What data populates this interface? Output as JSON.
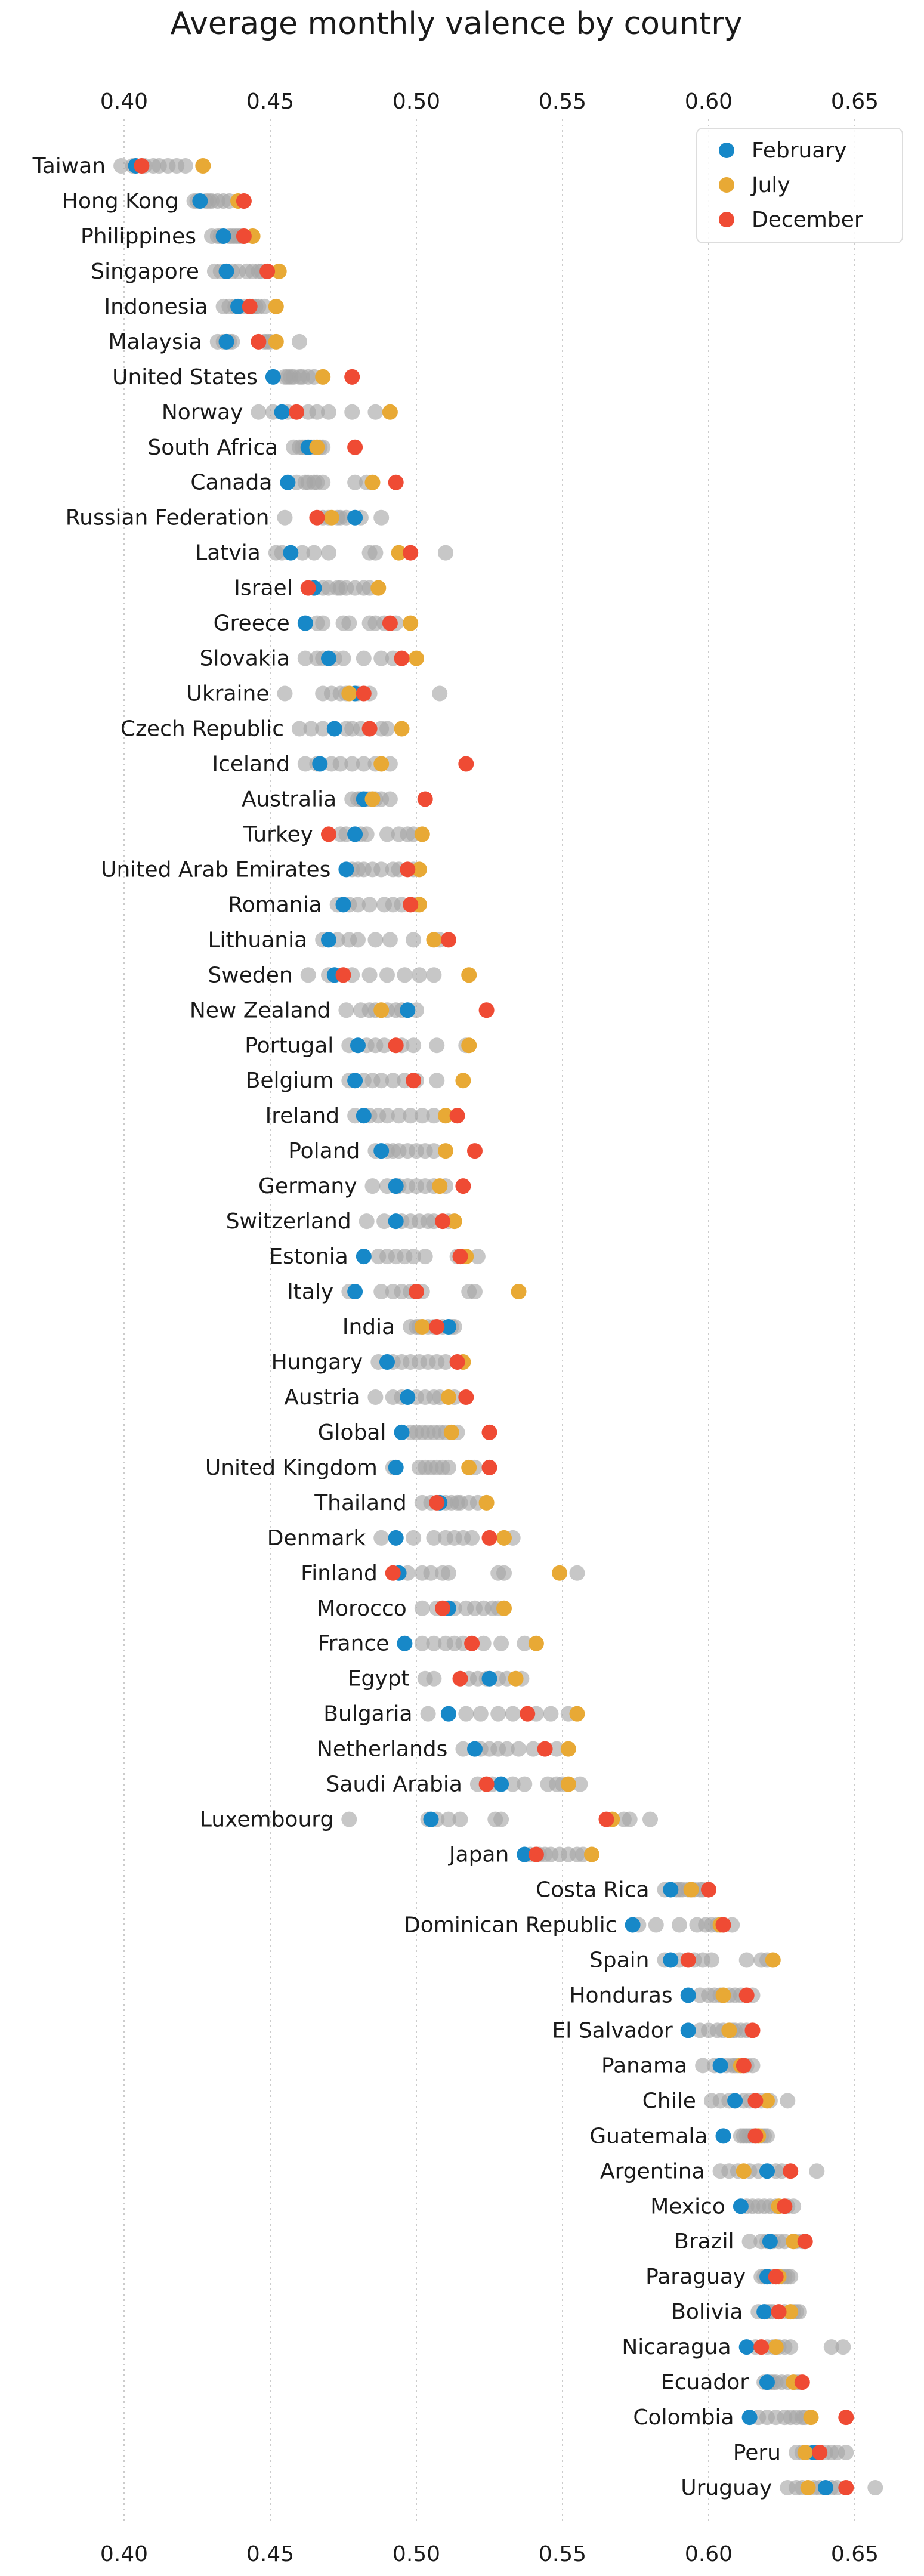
{
  "chart_data": {
    "type": "scatter",
    "title": "Average monthly valence by country",
    "xlabel": "",
    "ylabel": "",
    "xlim": [
      0.38,
      0.66
    ],
    "xticks": [
      "0.40",
      "0.45",
      "0.50",
      "0.55",
      "0.60",
      "0.65"
    ],
    "grid": "vertical dotted",
    "legend": {
      "position": "top-right",
      "entries": [
        "February",
        "July",
        "December"
      ]
    },
    "colors": {
      "February": "#1788c8",
      "July": "#e8a935",
      "December": "#ef4b34",
      "other_months": "#a5a5a5"
    },
    "series_order": [
      "February",
      "July",
      "December"
    ],
    "countries": [
      {
        "name": "Taiwan",
        "feb": 0.404,
        "jul": 0.427,
        "dec": 0.406,
        "others": [
          0.399,
          0.407,
          0.412,
          0.415,
          0.418,
          0.421,
          0.41,
          0.403
        ]
      },
      {
        "name": "Hong Kong",
        "feb": 0.426,
        "jul": 0.439,
        "dec": 0.441,
        "others": [
          0.424,
          0.428,
          0.432,
          0.436,
          0.43,
          0.425,
          0.434,
          0.429
        ]
      },
      {
        "name": "Philippines",
        "feb": 0.434,
        "jul": 0.444,
        "dec": 0.441,
        "others": [
          0.43,
          0.433,
          0.437,
          0.439,
          0.436,
          0.432,
          0.438,
          0.44
        ]
      },
      {
        "name": "Singapore",
        "feb": 0.435,
        "jul": 0.453,
        "dec": 0.449,
        "others": [
          0.431,
          0.433,
          0.437,
          0.446,
          0.442,
          0.439,
          0.447,
          0.444
        ]
      },
      {
        "name": "Indonesia",
        "feb": 0.439,
        "jul": 0.452,
        "dec": 0.443,
        "others": [
          0.434,
          0.436,
          0.441,
          0.445,
          0.448,
          0.438,
          0.446,
          0.444
        ]
      },
      {
        "name": "Malaysia",
        "feb": 0.435,
        "jul": 0.452,
        "dec": 0.446,
        "others": [
          0.432,
          0.434,
          0.437,
          0.448,
          0.46,
          0.45,
          0.436,
          0.449
        ]
      },
      {
        "name": "United States",
        "feb": 0.451,
        "jul": 0.468,
        "dec": 0.478,
        "others": [
          0.455,
          0.458,
          0.461,
          0.463,
          0.465,
          0.457,
          0.46,
          0.456
        ]
      },
      {
        "name": "Norway",
        "feb": 0.454,
        "jul": 0.491,
        "dec": 0.459,
        "others": [
          0.446,
          0.451,
          0.463,
          0.466,
          0.47,
          0.478,
          0.486,
          0.456
        ]
      },
      {
        "name": "South Africa",
        "feb": 0.463,
        "jul": 0.466,
        "dec": 0.479,
        "others": [
          0.458,
          0.46,
          0.462,
          0.465,
          0.468,
          0.461,
          0.464,
          0.467
        ]
      },
      {
        "name": "Canada",
        "feb": 0.456,
        "jul": 0.485,
        "dec": 0.493,
        "others": [
          0.459,
          0.462,
          0.465,
          0.468,
          0.479,
          0.483,
          0.463,
          0.466
        ]
      },
      {
        "name": "Russian Federation",
        "feb": 0.479,
        "jul": 0.471,
        "dec": 0.466,
        "others": [
          0.455,
          0.468,
          0.473,
          0.476,
          0.481,
          0.474,
          0.488,
          0.47
        ]
      },
      {
        "name": "Latvia",
        "feb": 0.457,
        "jul": 0.494,
        "dec": 0.498,
        "others": [
          0.452,
          0.454,
          0.461,
          0.465,
          0.47,
          0.484,
          0.486,
          0.51
        ]
      },
      {
        "name": "Israel",
        "feb": 0.465,
        "jul": 0.487,
        "dec": 0.463,
        "others": [
          0.468,
          0.47,
          0.473,
          0.476,
          0.479,
          0.482,
          0.484,
          0.474
        ]
      },
      {
        "name": "Greece",
        "feb": 0.462,
        "jul": 0.498,
        "dec": 0.491,
        "others": [
          0.466,
          0.468,
          0.475,
          0.477,
          0.484,
          0.486,
          0.493,
          0.489
        ]
      },
      {
        "name": "Slovakia",
        "feb": 0.47,
        "jul": 0.5,
        "dec": 0.495,
        "others": [
          0.462,
          0.466,
          0.468,
          0.475,
          0.482,
          0.488,
          0.492,
          0.472
        ]
      },
      {
        "name": "Ukraine",
        "feb": 0.479,
        "jul": 0.477,
        "dec": 0.482,
        "others": [
          0.455,
          0.468,
          0.471,
          0.474,
          0.476,
          0.48,
          0.484,
          0.508
        ]
      },
      {
        "name": "Czech Republic",
        "feb": 0.472,
        "jul": 0.495,
        "dec": 0.484,
        "others": [
          0.46,
          0.464,
          0.468,
          0.476,
          0.478,
          0.481,
          0.488,
          0.49
        ]
      },
      {
        "name": "Iceland",
        "feb": 0.467,
        "jul": 0.488,
        "dec": 0.517,
        "others": [
          0.462,
          0.466,
          0.471,
          0.474,
          0.478,
          0.482,
          0.486,
          0.491
        ]
      },
      {
        "name": "Australia",
        "feb": 0.482,
        "jul": 0.485,
        "dec": 0.503,
        "others": [
          0.478,
          0.48,
          0.484,
          0.486,
          0.488,
          0.483,
          0.481,
          0.491
        ]
      },
      {
        "name": "Turkey",
        "feb": 0.479,
        "jul": 0.502,
        "dec": 0.47,
        "others": [
          0.474,
          0.476,
          0.481,
          0.483,
          0.49,
          0.494,
          0.497,
          0.499
        ]
      },
      {
        "name": "United Arab Emirates",
        "feb": 0.476,
        "jul": 0.501,
        "dec": 0.497,
        "others": [
          0.478,
          0.48,
          0.482,
          0.485,
          0.488,
          0.492,
          0.494,
          0.499
        ]
      },
      {
        "name": "Romania",
        "feb": 0.475,
        "jul": 0.501,
        "dec": 0.498,
        "others": [
          0.473,
          0.477,
          0.48,
          0.484,
          0.489,
          0.492,
          0.495,
          0.5
        ]
      },
      {
        "name": "Lithuania",
        "feb": 0.47,
        "jul": 0.506,
        "dec": 0.511,
        "others": [
          0.468,
          0.473,
          0.477,
          0.48,
          0.486,
          0.491,
          0.499,
          0.508
        ]
      },
      {
        "name": "Sweden",
        "feb": 0.472,
        "jul": 0.518,
        "dec": 0.475,
        "others": [
          0.463,
          0.47,
          0.478,
          0.484,
          0.49,
          0.496,
          0.501,
          0.506
        ]
      },
      {
        "name": "New Zealand",
        "feb": 0.497,
        "jul": 0.488,
        "dec": 0.524,
        "others": [
          0.476,
          0.481,
          0.484,
          0.486,
          0.49,
          0.493,
          0.495,
          0.5
        ]
      },
      {
        "name": "Portugal",
        "feb": 0.48,
        "jul": 0.518,
        "dec": 0.493,
        "others": [
          0.477,
          0.483,
          0.486,
          0.489,
          0.495,
          0.499,
          0.507,
          0.517
        ]
      },
      {
        "name": "Belgium",
        "feb": 0.479,
        "jul": 0.516,
        "dec": 0.499,
        "others": [
          0.477,
          0.482,
          0.485,
          0.488,
          0.492,
          0.496,
          0.5,
          0.507
        ]
      },
      {
        "name": "Ireland",
        "feb": 0.482,
        "jul": 0.51,
        "dec": 0.514,
        "others": [
          0.479,
          0.484,
          0.487,
          0.49,
          0.494,
          0.498,
          0.502,
          0.506
        ]
      },
      {
        "name": "Poland",
        "feb": 0.488,
        "jul": 0.51,
        "dec": 0.52,
        "others": [
          0.486,
          0.49,
          0.492,
          0.494,
          0.497,
          0.5,
          0.503,
          0.506
        ]
      },
      {
        "name": "Germany",
        "feb": 0.493,
        "jul": 0.508,
        "dec": 0.516,
        "others": [
          0.485,
          0.49,
          0.494,
          0.497,
          0.5,
          0.503,
          0.506,
          0.51
        ]
      },
      {
        "name": "Switzerland",
        "feb": 0.493,
        "jul": 0.513,
        "dec": 0.509,
        "others": [
          0.483,
          0.489,
          0.495,
          0.498,
          0.501,
          0.504,
          0.506,
          0.511
        ]
      },
      {
        "name": "Estonia",
        "feb": 0.482,
        "jul": 0.517,
        "dec": 0.515,
        "others": [
          0.487,
          0.49,
          0.493,
          0.496,
          0.499,
          0.503,
          0.514,
          0.521
        ]
      },
      {
        "name": "Italy",
        "feb": 0.479,
        "jul": 0.535,
        "dec": 0.5,
        "others": [
          0.477,
          0.488,
          0.492,
          0.495,
          0.498,
          0.502,
          0.518,
          0.52
        ]
      },
      {
        "name": "India",
        "feb": 0.511,
        "jul": 0.502,
        "dec": 0.507,
        "others": [
          0.498,
          0.5,
          0.504,
          0.506,
          0.509,
          0.512,
          0.513,
          0.501
        ]
      },
      {
        "name": "Hungary",
        "feb": 0.49,
        "jul": 0.516,
        "dec": 0.514,
        "others": [
          0.487,
          0.492,
          0.495,
          0.498,
          0.501,
          0.504,
          0.507,
          0.51
        ]
      },
      {
        "name": "Austria",
        "feb": 0.497,
        "jul": 0.511,
        "dec": 0.517,
        "others": [
          0.486,
          0.492,
          0.495,
          0.5,
          0.503,
          0.506,
          0.508,
          0.513
        ]
      },
      {
        "name": "Global",
        "feb": 0.495,
        "jul": 0.512,
        "dec": 0.525,
        "others": [
          0.498,
          0.5,
          0.502,
          0.504,
          0.506,
          0.508,
          0.51,
          0.514
        ]
      },
      {
        "name": "United Kingdom",
        "feb": 0.493,
        "jul": 0.518,
        "dec": 0.525,
        "others": [
          0.492,
          0.501,
          0.503,
          0.505,
          0.507,
          0.509,
          0.511,
          0.52
        ]
      },
      {
        "name": "Thailand",
        "feb": 0.508,
        "jul": 0.524,
        "dec": 0.507,
        "others": [
          0.502,
          0.505,
          0.51,
          0.512,
          0.515,
          0.518,
          0.521,
          0.514
        ]
      },
      {
        "name": "Denmark",
        "feb": 0.493,
        "jul": 0.53,
        "dec": 0.525,
        "others": [
          0.488,
          0.499,
          0.506,
          0.51,
          0.513,
          0.516,
          0.519,
          0.533
        ]
      },
      {
        "name": "Finland",
        "feb": 0.494,
        "jul": 0.549,
        "dec": 0.492,
        "others": [
          0.497,
          0.502,
          0.505,
          0.509,
          0.511,
          0.528,
          0.53,
          0.555
        ]
      },
      {
        "name": "Morocco",
        "feb": 0.511,
        "jul": 0.53,
        "dec": 0.509,
        "others": [
          0.502,
          0.507,
          0.513,
          0.517,
          0.52,
          0.523,
          0.526,
          0.528
        ]
      },
      {
        "name": "France",
        "feb": 0.496,
        "jul": 0.541,
        "dec": 0.519,
        "others": [
          0.502,
          0.506,
          0.51,
          0.513,
          0.516,
          0.523,
          0.529,
          0.537
        ]
      },
      {
        "name": "Egypt",
        "feb": 0.525,
        "jul": 0.534,
        "dec": 0.515,
        "others": [
          0.503,
          0.506,
          0.518,
          0.521,
          0.524,
          0.528,
          0.531,
          0.536
        ]
      },
      {
        "name": "Bulgaria",
        "feb": 0.511,
        "jul": 0.555,
        "dec": 0.538,
        "others": [
          0.504,
          0.517,
          0.522,
          0.528,
          0.533,
          0.541,
          0.546,
          0.552
        ]
      },
      {
        "name": "Netherlands",
        "feb": 0.52,
        "jul": 0.552,
        "dec": 0.544,
        "others": [
          0.516,
          0.522,
          0.525,
          0.528,
          0.531,
          0.535,
          0.54,
          0.548
        ]
      },
      {
        "name": "Saudi Arabia",
        "feb": 0.529,
        "jul": 0.552,
        "dec": 0.524,
        "others": [
          0.521,
          0.526,
          0.533,
          0.537,
          0.545,
          0.548,
          0.55,
          0.556
        ]
      },
      {
        "name": "Luxembourg",
        "feb": 0.505,
        "jul": 0.567,
        "dec": 0.565,
        "others": [
          0.477,
          0.504,
          0.507,
          0.511,
          0.515,
          0.527,
          0.529,
          0.571,
          0.573,
          0.58
        ]
      },
      {
        "name": "Japan",
        "feb": 0.537,
        "jul": 0.56,
        "dec": 0.541,
        "others": [
          0.539,
          0.542,
          0.544,
          0.546,
          0.549,
          0.552,
          0.555,
          0.557
        ]
      },
      {
        "name": "Costa Rica",
        "feb": 0.587,
        "jul": 0.594,
        "dec": 0.6,
        "others": [
          0.585,
          0.589,
          0.591,
          0.593,
          0.595,
          0.597,
          0.59,
          0.598
        ]
      },
      {
        "name": "Dominican Republic",
        "feb": 0.574,
        "jul": 0.604,
        "dec": 0.605,
        "others": [
          0.576,
          0.582,
          0.59,
          0.596,
          0.599,
          0.601,
          0.603,
          0.608
        ]
      },
      {
        "name": "Spain",
        "feb": 0.587,
        "jul": 0.622,
        "dec": 0.593,
        "others": [
          0.585,
          0.59,
          0.595,
          0.598,
          0.601,
          0.613,
          0.618,
          0.62
        ]
      },
      {
        "name": "Honduras",
        "feb": 0.593,
        "jul": 0.605,
        "dec": 0.613,
        "others": [
          0.597,
          0.6,
          0.602,
          0.604,
          0.607,
          0.609,
          0.611,
          0.615
        ]
      },
      {
        "name": "El Salvador",
        "feb": 0.593,
        "jul": 0.607,
        "dec": 0.615,
        "others": [
          0.597,
          0.6,
          0.603,
          0.605,
          0.608,
          0.611,
          0.613,
          0.609
        ]
      },
      {
        "name": "Panama",
        "feb": 0.604,
        "jul": 0.611,
        "dec": 0.612,
        "others": [
          0.598,
          0.602,
          0.606,
          0.608,
          0.61,
          0.613,
          0.615,
          0.609
        ]
      },
      {
        "name": "Chile",
        "feb": 0.609,
        "jul": 0.62,
        "dec": 0.616,
        "others": [
          0.601,
          0.604,
          0.607,
          0.612,
          0.614,
          0.618,
          0.621,
          0.627
        ]
      },
      {
        "name": "Guatemala",
        "feb": 0.605,
        "jul": 0.617,
        "dec": 0.616,
        "others": [
          0.611,
          0.612,
          0.614,
          0.615,
          0.618,
          0.619,
          0.613,
          0.62
        ]
      },
      {
        "name": "Argentina",
        "feb": 0.62,
        "jul": 0.612,
        "dec": 0.628,
        "others": [
          0.604,
          0.607,
          0.61,
          0.614,
          0.617,
          0.623,
          0.625,
          0.637
        ]
      },
      {
        "name": "Mexico",
        "feb": 0.611,
        "jul": 0.624,
        "dec": 0.626,
        "others": [
          0.613,
          0.615,
          0.617,
          0.619,
          0.621,
          0.623,
          0.627,
          0.629
        ]
      },
      {
        "name": "Brazil",
        "feb": 0.621,
        "jul": 0.629,
        "dec": 0.633,
        "others": [
          0.614,
          0.618,
          0.62,
          0.622,
          0.624,
          0.626,
          0.63,
          0.632
        ]
      },
      {
        "name": "Paraguay",
        "feb": 0.62,
        "jul": 0.624,
        "dec": 0.623,
        "others": [
          0.618,
          0.621,
          0.622,
          0.625,
          0.626,
          0.628,
          0.619,
          0.627
        ]
      },
      {
        "name": "Bolivia",
        "feb": 0.619,
        "jul": 0.628,
        "dec": 0.624,
        "others": [
          0.617,
          0.62,
          0.621,
          0.622,
          0.626,
          0.629,
          0.631,
          0.63
        ]
      },
      {
        "name": "Nicaragua",
        "feb": 0.613,
        "jul": 0.623,
        "dec": 0.618,
        "others": [
          0.616,
          0.62,
          0.622,
          0.624,
          0.626,
          0.628,
          0.642,
          0.646
        ]
      },
      {
        "name": "Ecuador",
        "feb": 0.62,
        "jul": 0.629,
        "dec": 0.632,
        "others": [
          0.619,
          0.621,
          0.623,
          0.625,
          0.627,
          0.63,
          0.622,
          0.631
        ]
      },
      {
        "name": "Colombia",
        "feb": 0.614,
        "jul": 0.635,
        "dec": 0.647,
        "others": [
          0.617,
          0.62,
          0.623,
          0.626,
          0.628,
          0.63,
          0.632,
          0.633
        ]
      },
      {
        "name": "Peru",
        "feb": 0.636,
        "jul": 0.633,
        "dec": 0.638,
        "others": [
          0.63,
          0.632,
          0.634,
          0.637,
          0.64,
          0.642,
          0.644,
          0.647
        ]
      },
      {
        "name": "Uruguay",
        "feb": 0.64,
        "jul": 0.634,
        "dec": 0.647,
        "others": [
          0.627,
          0.63,
          0.632,
          0.636,
          0.638,
          0.642,
          0.644,
          0.657
        ]
      }
    ]
  }
}
